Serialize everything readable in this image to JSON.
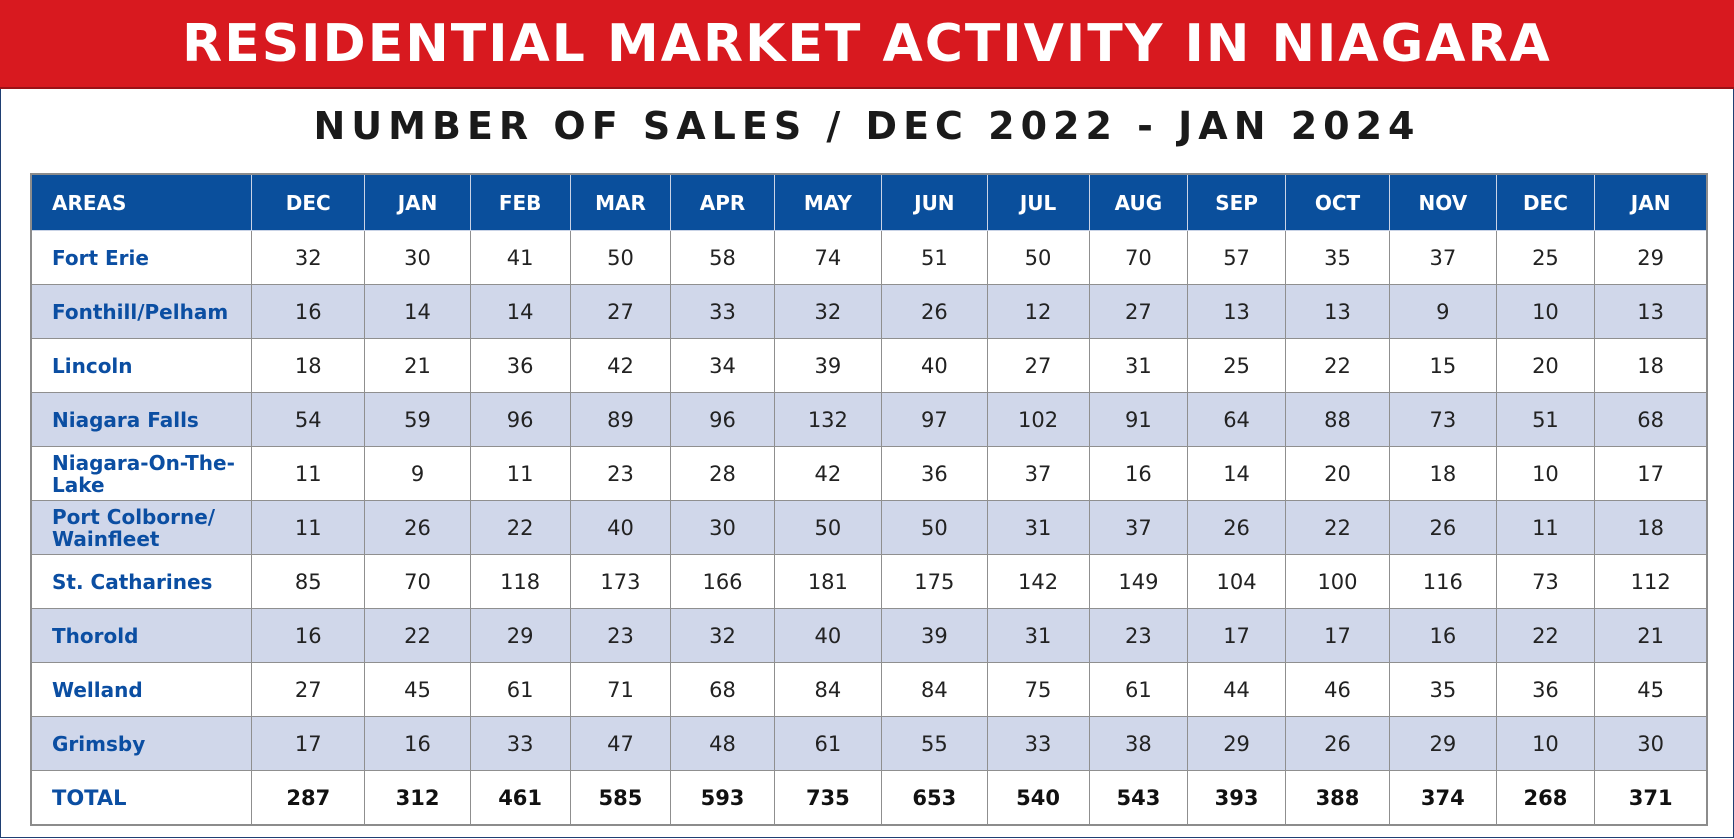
{
  "banner": {
    "title": "RESIDENTIAL MARKET ACTIVITY IN NIAGARA"
  },
  "subtitle": "NUMBER OF SALES / DEC 2022 - JAN 2024",
  "table": {
    "headers": [
      "AREAS",
      "DEC",
      "JAN",
      "FEB",
      "MAR",
      "APR",
      "MAY",
      "JUN",
      "JUL",
      "AUG",
      "SEP",
      "OCT",
      "NOV",
      "DEC",
      "JAN"
    ],
    "rows": [
      {
        "area": "Fort Erie",
        "values": [
          "32",
          "30",
          "41",
          "50",
          "58",
          "74",
          "51",
          "50",
          "70",
          "57",
          "35",
          "37",
          "25",
          "29"
        ]
      },
      {
        "area": "Fonthill/Pelham",
        "values": [
          "16",
          "14",
          "14",
          "27",
          "33",
          "32",
          "26",
          "12",
          "27",
          "13",
          "13",
          "9",
          "10",
          "13"
        ]
      },
      {
        "area": "Lincoln",
        "values": [
          "18",
          "21",
          "36",
          "42",
          "34",
          "39",
          "40",
          "27",
          "31",
          "25",
          "22",
          "15",
          "20",
          "18"
        ]
      },
      {
        "area": "Niagara Falls",
        "values": [
          "54",
          "59",
          "96",
          "89",
          "96",
          "132",
          "97",
          "102",
          "91",
          "64",
          "88",
          "73",
          "51",
          "68"
        ]
      },
      {
        "area": "Niagara-On-The-Lake",
        "values": [
          "11",
          "9",
          "11",
          "23",
          "28",
          "42",
          "36",
          "37",
          "16",
          "14",
          "20",
          "18",
          "10",
          "17"
        ]
      },
      {
        "area": "Port Colborne/ Wainfleet",
        "values": [
          "11",
          "26",
          "22",
          "40",
          "30",
          "50",
          "50",
          "31",
          "37",
          "26",
          "22",
          "26",
          "11",
          "18"
        ]
      },
      {
        "area": "St. Catharines",
        "values": [
          "85",
          "70",
          "118",
          "173",
          "166",
          "181",
          "175",
          "142",
          "149",
          "104",
          "100",
          "116",
          "73",
          "112"
        ]
      },
      {
        "area": "Thorold",
        "values": [
          "16",
          "22",
          "29",
          "23",
          "32",
          "40",
          "39",
          "31",
          "23",
          "17",
          "17",
          "16",
          "22",
          "21"
        ]
      },
      {
        "area": "Welland",
        "values": [
          "27",
          "45",
          "61",
          "71",
          "68",
          "84",
          "84",
          "75",
          "61",
          "44",
          "46",
          "35",
          "36",
          "45"
        ]
      },
      {
        "area": "Grimsby",
        "values": [
          "17",
          "16",
          "33",
          "47",
          "48",
          "61",
          "55",
          "33",
          "38",
          "29",
          "26",
          "29",
          "10",
          "30"
        ]
      }
    ],
    "total": {
      "area": "TOTAL",
      "values": [
        "287",
        "312",
        "461",
        "585",
        "593",
        "735",
        "653",
        "540",
        "543",
        "393",
        "388",
        "374",
        "268",
        "371"
      ]
    }
  },
  "colors": {
    "banner_red": "#d8191f",
    "header_blue": "#0a4f9c",
    "area_text_blue": "#0b4ea2",
    "alt_row": "#d0d7ea"
  }
}
